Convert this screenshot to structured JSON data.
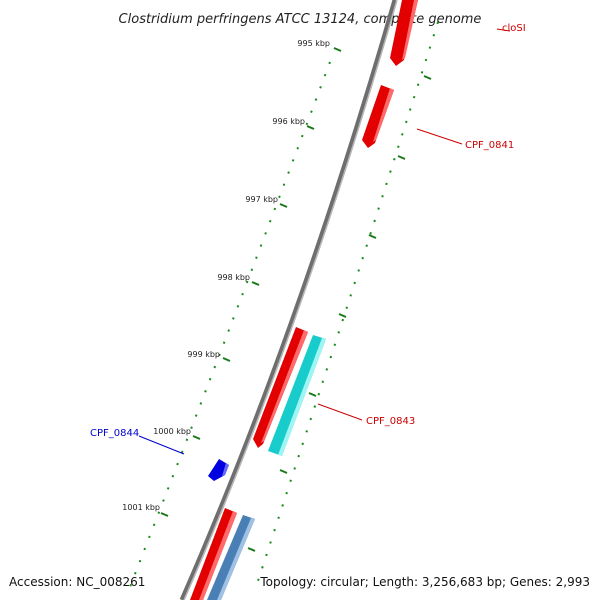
{
  "title": "Clostridium perfringens ATCC 13124, complete genome",
  "footer": {
    "accession": "Accession: NC_008261",
    "topology": "Topology: circular; Length: 3,256,683 bp; Genes: 2,993"
  },
  "ticks": [
    "995 kbp",
    "996 kbp",
    "997 kbp",
    "998 kbp",
    "999 kbp",
    "1000 kbp",
    "1001 kbp"
  ],
  "gene_labels": [
    {
      "id": "closl",
      "text": "cloSI",
      "color": "#cc0000"
    },
    {
      "id": "cpf0841",
      "text": "CPF_0841",
      "color": "#cc0000"
    },
    {
      "id": "cpf0843",
      "text": "CPF_0843",
      "color": "#cc0000"
    },
    {
      "id": "cpf0844",
      "text": "CPF_0844",
      "color": "#0000cc"
    }
  ],
  "colors": {
    "backbone": "#7a7a7a",
    "tick": "#1a7a1a",
    "forward_cds": "#e60000",
    "reverse_cds": "#0000dd",
    "rna": "#1fcfcf",
    "other": "#4a7fb5"
  }
}
